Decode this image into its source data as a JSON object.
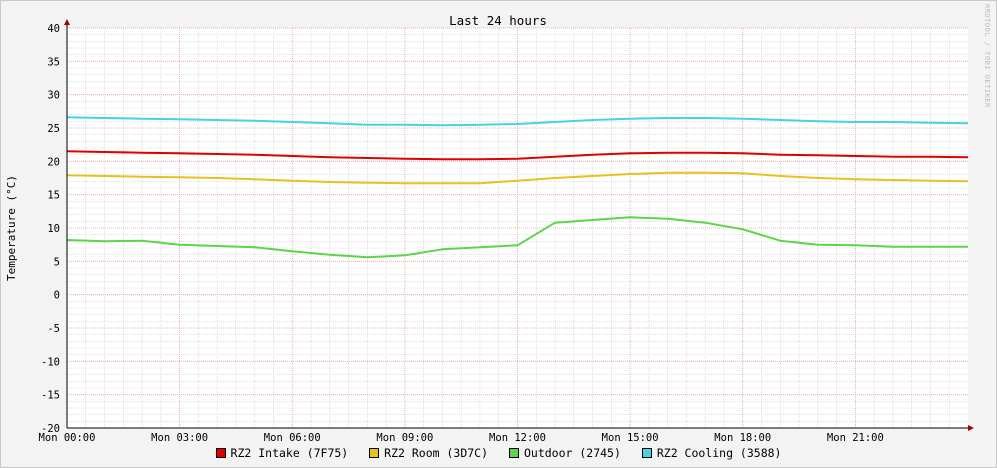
{
  "chart_data": {
    "type": "line",
    "title": "Last 24 hours",
    "xlabel": "",
    "ylabel": "Temperature (°C)",
    "ylim": [
      -20,
      40
    ],
    "yticks": [
      40,
      35,
      30,
      25,
      20,
      15,
      10,
      5,
      0,
      -5,
      -10,
      -15,
      -20
    ],
    "xlim_hours": [
      0,
      24
    ],
    "xticks": [
      {
        "hour": 0,
        "label": "Mon 00:00"
      },
      {
        "hour": 3,
        "label": "Mon 03:00"
      },
      {
        "hour": 6,
        "label": "Mon 06:00"
      },
      {
        "hour": 9,
        "label": "Mon 09:00"
      },
      {
        "hour": 12,
        "label": "Mon 12:00"
      },
      {
        "hour": 15,
        "label": "Mon 15:00"
      },
      {
        "hour": 18,
        "label": "Mon 18:00"
      },
      {
        "hour": 21,
        "label": "Mon 21:00"
      }
    ],
    "grid": true,
    "legend_position": "bottom",
    "x_hours": [
      0,
      1,
      2,
      3,
      4,
      5,
      6,
      7,
      8,
      9,
      10,
      11,
      12,
      13,
      14,
      15,
      16,
      17,
      18,
      19,
      20,
      21,
      22,
      23,
      24
    ],
    "series": [
      {
        "name": "RZ2 Intake (7F75)",
        "color": "#e00000",
        "values": [
          21.5,
          21.4,
          21.3,
          21.2,
          21.1,
          21.0,
          20.8,
          20.6,
          20.5,
          20.4,
          20.3,
          20.3,
          20.4,
          20.7,
          21.0,
          21.2,
          21.3,
          21.3,
          21.2,
          21.0,
          20.9,
          20.8,
          20.7,
          20.7,
          20.6
        ]
      },
      {
        "name": "RZ2 Room (3D7C)",
        "color": "#e8c020",
        "values": [
          17.9,
          17.8,
          17.7,
          17.6,
          17.5,
          17.3,
          17.1,
          16.9,
          16.8,
          16.7,
          16.7,
          16.7,
          17.1,
          17.5,
          17.8,
          18.1,
          18.3,
          18.3,
          18.2,
          17.8,
          17.5,
          17.3,
          17.2,
          17.1,
          17.0
        ]
      },
      {
        "name": "Outdoor (2745)",
        "color": "#5ad648",
        "values": [
          8.2,
          8.0,
          8.1,
          7.5,
          7.3,
          7.1,
          6.5,
          6.0,
          5.6,
          5.9,
          6.8,
          7.1,
          7.4,
          10.8,
          11.2,
          11.6,
          11.4,
          10.8,
          9.8,
          8.1,
          7.5,
          7.4,
          7.2,
          7.2,
          7.2
        ]
      },
      {
        "name": "RZ2 Cooling (3588)",
        "color": "#45d3e2",
        "values": [
          26.6,
          26.5,
          26.4,
          26.3,
          26.2,
          26.1,
          25.9,
          25.7,
          25.5,
          25.5,
          25.4,
          25.5,
          25.6,
          25.9,
          26.2,
          26.4,
          26.5,
          26.5,
          26.4,
          26.2,
          26.0,
          25.9,
          25.9,
          25.8,
          25.7
        ]
      }
    ]
  },
  "watermark": "RRDTOOL / TOBI OETIKER"
}
